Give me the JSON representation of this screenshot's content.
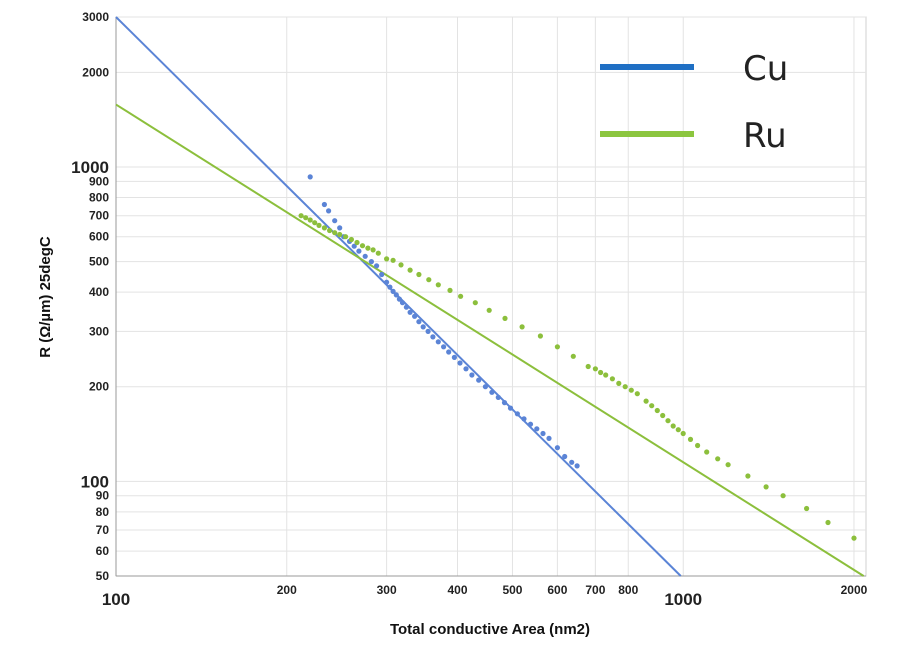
{
  "chart_data": {
    "type": "scatter",
    "xlabel": "Total conductive Area (nm2)",
    "ylabel": "R (Ω/µm) 25degC",
    "scale": "log-log",
    "xlim": [
      100,
      2100
    ],
    "ylim": [
      50,
      3000
    ],
    "grid": true,
    "legend_position": "top-right",
    "x_ticks": [
      {
        "value": 100,
        "label": "100",
        "major": true
      },
      {
        "value": 200,
        "label": "200",
        "major": false
      },
      {
        "value": 300,
        "label": "300",
        "major": false
      },
      {
        "value": 400,
        "label": "400",
        "major": false
      },
      {
        "value": 500,
        "label": "500",
        "major": false
      },
      {
        "value": 600,
        "label": "600",
        "major": false
      },
      {
        "value": 700,
        "label": "700",
        "major": false
      },
      {
        "value": 800,
        "label": "800",
        "major": false
      },
      {
        "value": 1000,
        "label": "1000",
        "major": true
      },
      {
        "value": 2000,
        "label": "2000",
        "major": false
      }
    ],
    "y_ticks": [
      {
        "value": 50,
        "label": "50",
        "major": false
      },
      {
        "value": 60,
        "label": "60",
        "major": false
      },
      {
        "value": 70,
        "label": "70",
        "major": false
      },
      {
        "value": 80,
        "label": "80",
        "major": false
      },
      {
        "value": 90,
        "label": "90",
        "major": false
      },
      {
        "value": 100,
        "label": "100",
        "major": true
      },
      {
        "value": 200,
        "label": "200",
        "major": false
      },
      {
        "value": 300,
        "label": "300",
        "major": false
      },
      {
        "value": 400,
        "label": "400",
        "major": false
      },
      {
        "value": 500,
        "label": "500",
        "major": false
      },
      {
        "value": 600,
        "label": "600",
        "major": false
      },
      {
        "value": 700,
        "label": "700",
        "major": false
      },
      {
        "value": 800,
        "label": "800",
        "major": false
      },
      {
        "value": 900,
        "label": "900",
        "major": false
      },
      {
        "value": 1000,
        "label": "1000",
        "major": true
      },
      {
        "value": 2000,
        "label": "2000",
        "major": false
      },
      {
        "value": 3000,
        "label": "3000",
        "major": false
      }
    ],
    "series": [
      {
        "name": "Cu",
        "color": "#5b84d6",
        "legend_color": "#1f6fc4",
        "fit": {
          "x": [
            100,
            990
          ],
          "y": [
            3000,
            50
          ]
        },
        "points": [
          [
            220,
            930
          ],
          [
            233,
            760
          ],
          [
            237,
            725
          ],
          [
            243,
            675
          ],
          [
            248,
            640
          ],
          [
            252,
            600
          ],
          [
            258,
            580
          ],
          [
            263,
            560
          ],
          [
            268,
            540
          ],
          [
            275,
            520
          ],
          [
            282,
            500
          ],
          [
            288,
            485
          ],
          [
            294,
            455
          ],
          [
            300,
            430
          ],
          [
            304,
            415
          ],
          [
            308,
            402
          ],
          [
            312,
            392
          ],
          [
            316,
            380
          ],
          [
            320,
            370
          ],
          [
            325,
            358
          ],
          [
            330,
            345
          ],
          [
            336,
            335
          ],
          [
            342,
            322
          ],
          [
            348,
            310
          ],
          [
            355,
            300
          ],
          [
            362,
            288
          ],
          [
            370,
            278
          ],
          [
            378,
            268
          ],
          [
            386,
            258
          ],
          [
            395,
            248
          ],
          [
            404,
            238
          ],
          [
            414,
            228
          ],
          [
            424,
            218
          ],
          [
            436,
            210
          ],
          [
            448,
            200
          ],
          [
            460,
            192
          ],
          [
            472,
            185
          ],
          [
            484,
            178
          ],
          [
            496,
            171
          ],
          [
            510,
            164
          ],
          [
            524,
            158
          ],
          [
            538,
            152
          ],
          [
            552,
            147
          ],
          [
            566,
            142
          ],
          [
            580,
            137
          ],
          [
            600,
            128
          ],
          [
            618,
            120
          ],
          [
            636,
            115
          ],
          [
            650,
            112
          ]
        ]
      },
      {
        "name": "Ru",
        "color": "#8cbf3c",
        "legend_color": "#8cc63f",
        "fit": {
          "x": [
            100,
            2080
          ],
          "y": [
            1580,
            50
          ]
        },
        "points": [
          [
            212,
            700
          ],
          [
            216,
            690
          ],
          [
            220,
            678
          ],
          [
            224,
            665
          ],
          [
            228,
            652
          ],
          [
            233,
            640
          ],
          [
            238,
            628
          ],
          [
            243,
            618
          ],
          [
            248,
            610
          ],
          [
            254,
            600
          ],
          [
            260,
            588
          ],
          [
            266,
            575
          ],
          [
            272,
            562
          ],
          [
            278,
            552
          ],
          [
            284,
            545
          ],
          [
            290,
            532
          ],
          [
            300,
            510
          ],
          [
            308,
            505
          ],
          [
            318,
            488
          ],
          [
            330,
            470
          ],
          [
            342,
            455
          ],
          [
            356,
            438
          ],
          [
            370,
            422
          ],
          [
            388,
            405
          ],
          [
            405,
            388
          ],
          [
            430,
            370
          ],
          [
            455,
            350
          ],
          [
            485,
            330
          ],
          [
            520,
            310
          ],
          [
            560,
            290
          ],
          [
            600,
            268
          ],
          [
            640,
            250
          ],
          [
            680,
            232
          ],
          [
            700,
            228
          ],
          [
            715,
            222
          ],
          [
            730,
            218
          ],
          [
            750,
            212
          ],
          [
            770,
            205
          ],
          [
            790,
            200
          ],
          [
            810,
            195
          ],
          [
            830,
            190
          ],
          [
            860,
            180
          ],
          [
            880,
            174
          ],
          [
            900,
            168
          ],
          [
            920,
            162
          ],
          [
            940,
            156
          ],
          [
            960,
            150
          ],
          [
            980,
            146
          ],
          [
            1000,
            142
          ],
          [
            1030,
            136
          ],
          [
            1060,
            130
          ],
          [
            1100,
            124
          ],
          [
            1150,
            118
          ],
          [
            1200,
            113
          ],
          [
            1300,
            104
          ],
          [
            1400,
            96
          ],
          [
            1500,
            90
          ],
          [
            1650,
            82
          ],
          [
            1800,
            74
          ],
          [
            2000,
            66
          ]
        ]
      }
    ]
  }
}
